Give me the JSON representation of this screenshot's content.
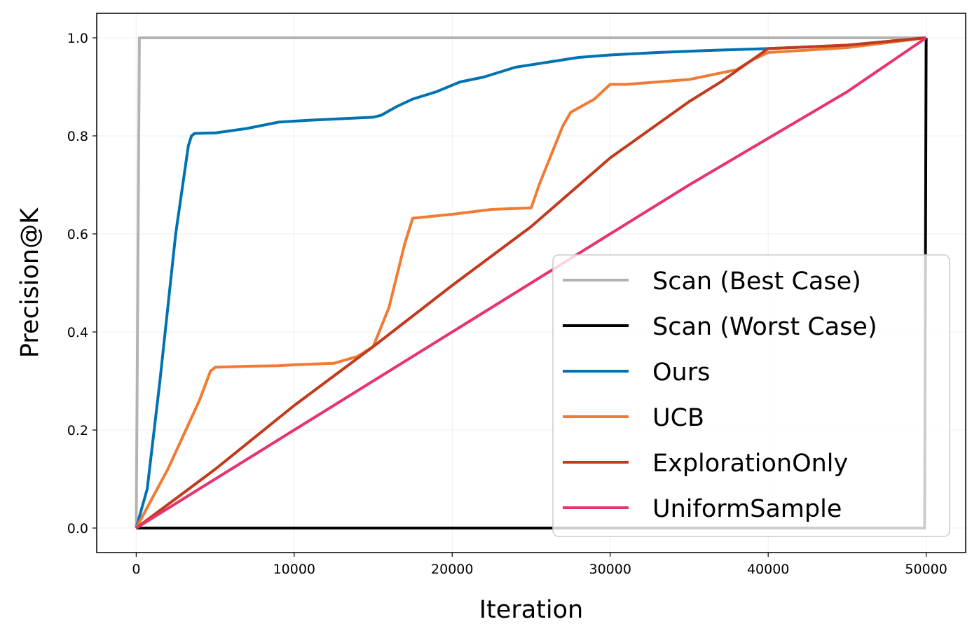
{
  "chart_data": {
    "type": "line",
    "title": "",
    "xlabel": "Iteration",
    "ylabel": "Precision@K",
    "xlim": [
      -2500,
      52500
    ],
    "ylim": [
      -0.05,
      1.05
    ],
    "xticks": [
      0,
      10000,
      20000,
      30000,
      40000,
      50000
    ],
    "xtick_labels": [
      "0",
      "10000",
      "20000",
      "30000",
      "40000",
      "50000"
    ],
    "yticks": [
      0.0,
      0.2,
      0.4,
      0.6,
      0.8,
      1.0
    ],
    "ytick_labels": [
      "0.0",
      "0.2",
      "0.4",
      "0.6",
      "0.8",
      "1.0"
    ],
    "grid": true,
    "legend_position": "lower-right",
    "series": [
      {
        "name": "Scan (Best Case)",
        "color": "#b3b3b3",
        "x": [
          0,
          200,
          50000
        ],
        "y": [
          0.0,
          1.0,
          1.0
        ]
      },
      {
        "name": "Scan (Worst Case)",
        "color": "#000000",
        "x": [
          0,
          49900,
          50000
        ],
        "y": [
          0.0,
          0.0,
          1.0
        ]
      },
      {
        "name": "Ours",
        "color": "#0072b2",
        "x": [
          0,
          700,
          1500,
          2500,
          3300,
          3500,
          3700,
          5000,
          7000,
          9000,
          11000,
          13000,
          15000,
          15500,
          16500,
          17500,
          19000,
          20500,
          22000,
          24000,
          26000,
          28000,
          30000,
          33000,
          36000,
          40000,
          45000,
          50000
        ],
        "y": [
          0.0,
          0.08,
          0.3,
          0.6,
          0.78,
          0.8,
          0.805,
          0.806,
          0.815,
          0.828,
          0.832,
          0.835,
          0.838,
          0.842,
          0.86,
          0.875,
          0.89,
          0.91,
          0.92,
          0.94,
          0.95,
          0.96,
          0.965,
          0.97,
          0.974,
          0.978,
          0.985,
          1.0
        ]
      },
      {
        "name": "UCB",
        "color": "#ef7b34",
        "x": [
          0,
          1000,
          2000,
          3000,
          4000,
          4700,
          5000,
          7000,
          9000,
          10000,
          12500,
          14000,
          15000,
          16000,
          17000,
          17500,
          20000,
          22500,
          25000,
          25500,
          26500,
          27000,
          27500,
          29000,
          30000,
          31000,
          35000,
          38000,
          39000,
          40000,
          45000,
          50000
        ],
        "y": [
          0.0,
          0.06,
          0.12,
          0.19,
          0.26,
          0.32,
          0.328,
          0.33,
          0.331,
          0.333,
          0.336,
          0.35,
          0.37,
          0.45,
          0.58,
          0.632,
          0.64,
          0.65,
          0.653,
          0.7,
          0.78,
          0.82,
          0.848,
          0.875,
          0.905,
          0.905,
          0.915,
          0.935,
          0.955,
          0.97,
          0.98,
          1.0
        ]
      },
      {
        "name": "ExplorationOnly",
        "color": "#c23a1c",
        "x": [
          0,
          5000,
          10000,
          15000,
          20000,
          25000,
          30000,
          35000,
          37000,
          40000,
          45000,
          50000
        ],
        "y": [
          0.0,
          0.12,
          0.25,
          0.37,
          0.495,
          0.615,
          0.755,
          0.87,
          0.91,
          0.978,
          0.985,
          1.0
        ]
      },
      {
        "name": "UniformSample",
        "color": "#e8336e",
        "x": [
          0,
          5000,
          10000,
          15000,
          20000,
          25000,
          30000,
          35000,
          40000,
          45000,
          50000
        ],
        "y": [
          0.0,
          0.1,
          0.2,
          0.3,
          0.4,
          0.5,
          0.6,
          0.7,
          0.795,
          0.89,
          1.0
        ]
      }
    ]
  }
}
